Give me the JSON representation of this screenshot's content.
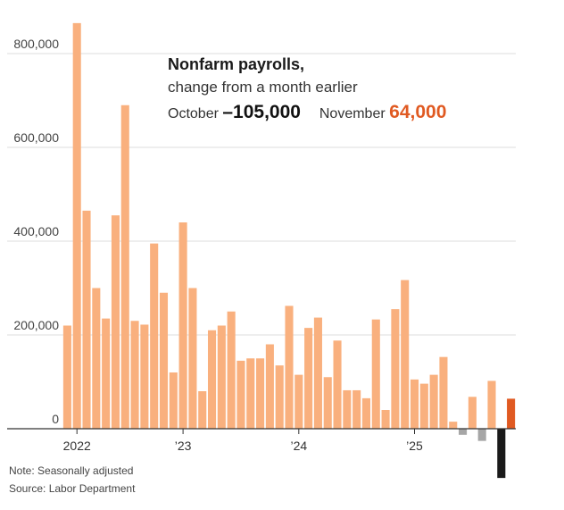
{
  "chart_data": {
    "type": "bar",
    "title": "Nonfarm payrolls,",
    "subtitle": "change from a month earlier",
    "callouts": [
      {
        "label": "October",
        "value": "–105,000"
      },
      {
        "label": "November",
        "value": "64,000"
      }
    ],
    "y_ticks": [
      {
        "value": 800000,
        "label": "800,000"
      },
      {
        "value": 600000,
        "label": "600,000"
      },
      {
        "value": 400000,
        "label": "400,000"
      },
      {
        "value": 200000,
        "label": "200,000"
      },
      {
        "value": 0,
        "label": "0"
      }
    ],
    "x_ticks": [
      {
        "index": 1,
        "label": "2022"
      },
      {
        "index": 12,
        "label": "’23"
      },
      {
        "index": 24,
        "label": "’24"
      },
      {
        "index": 36,
        "label": "’25"
      }
    ],
    "ylim": [
      -110000,
      880000
    ],
    "grid": true,
    "values": [
      220000,
      865000,
      465000,
      300000,
      235000,
      455000,
      690000,
      230000,
      222000,
      395000,
      290000,
      120000,
      440000,
      300000,
      80000,
      210000,
      220000,
      250000,
      145000,
      150000,
      150000,
      180000,
      135000,
      262000,
      115000,
      215000,
      237000,
      110000,
      188000,
      82000,
      82000,
      65000,
      233000,
      40000,
      255000,
      317000,
      105000,
      96000,
      115000,
      153000,
      15000,
      -13000,
      68000,
      -26000,
      102000,
      -105000,
      64000
    ],
    "bar_colors": [
      "#f9b07e",
      "#f9b07e",
      "#f9b07e",
      "#f9b07e",
      "#f9b07e",
      "#f9b07e",
      "#f9b07e",
      "#f9b07e",
      "#f9b07e",
      "#f9b07e",
      "#f9b07e",
      "#f9b07e",
      "#f9b07e",
      "#f9b07e",
      "#f9b07e",
      "#f9b07e",
      "#f9b07e",
      "#f9b07e",
      "#f9b07e",
      "#f9b07e",
      "#f9b07e",
      "#f9b07e",
      "#f9b07e",
      "#f9b07e",
      "#f9b07e",
      "#f9b07e",
      "#f9b07e",
      "#f9b07e",
      "#f9b07e",
      "#f9b07e",
      "#f9b07e",
      "#f9b07e",
      "#f9b07e",
      "#f9b07e",
      "#f9b07e",
      "#f9b07e",
      "#f9b07e",
      "#f9b07e",
      "#f9b07e",
      "#f9b07e",
      "#f9b07e",
      "#a6a6a6",
      "#f9b07e",
      "#a6a6a6",
      "#f9b07e",
      "#1a1a1a",
      "#e05a22"
    ]
  },
  "footnotes": {
    "note": "Note: Seasonally adjusted",
    "source": "Source: Labor Department"
  }
}
